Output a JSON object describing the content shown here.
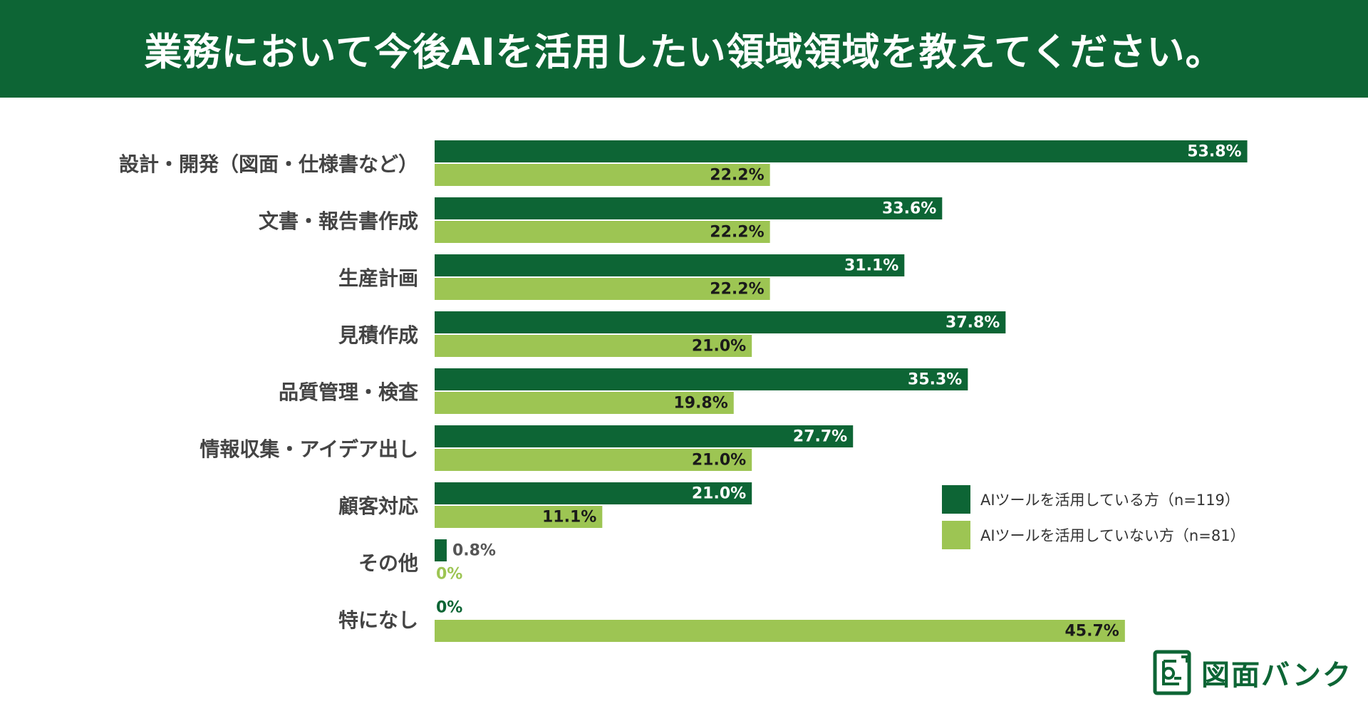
{
  "title": "業務において今後AIを活用したい領域領域を教えてください。",
  "colors": {
    "header_bg": "#0d6535",
    "series_users": "#0d6535",
    "series_nonusers": "#9dc553"
  },
  "chart_data": {
    "type": "bar",
    "orientation": "horizontal",
    "title": "業務において今後AIを活用したい領域領域を教えてください。",
    "categories": [
      "設計・開発（図面・仕様書など）",
      "文書・報告書作成",
      "生産計画",
      "見積作成",
      "品質管理・検査",
      "情報収集・アイデア出し",
      "顧客対応",
      "その他",
      "特になし"
    ],
    "series": [
      {
        "name": "AIツールを活用している方（n=119）",
        "values": [
          53.8,
          33.6,
          31.1,
          37.8,
          35.3,
          27.7,
          21.0,
          0.8,
          0
        ],
        "labels": [
          "53.8%",
          "33.6%",
          "31.1%",
          "37.8%",
          "35.3%",
          "27.7%",
          "21.0%",
          "0.8%",
          "0%"
        ]
      },
      {
        "name": "AIツールを活用していない方（n=81）",
        "values": [
          22.2,
          22.2,
          22.2,
          21.0,
          19.8,
          21.0,
          11.1,
          0,
          45.7
        ],
        "labels": [
          "22.2%",
          "22.2%",
          "22.2%",
          "21.0%",
          "19.8%",
          "21.0%",
          "11.1%",
          "0%",
          "45.7%"
        ]
      }
    ],
    "xlim": [
      0,
      60
    ],
    "unit": "%",
    "grid": false,
    "legend_position": "bottom-right"
  },
  "legend": {
    "items": [
      {
        "label": "AIツールを活用している方（n=119）"
      },
      {
        "label": "AIツールを活用していない方（n=81）"
      }
    ]
  },
  "brand": {
    "name": "図面バンク",
    "icon": "drawing-bank-logo-icon"
  }
}
